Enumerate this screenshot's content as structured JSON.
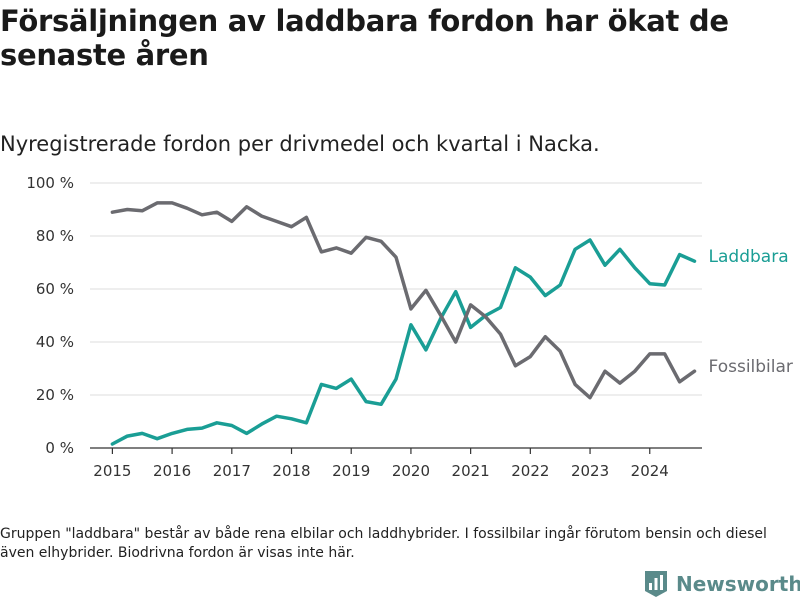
{
  "title": "Försäljningen av laddbara fordon har ökat de senaste åren",
  "subtitle": "Nyregistrerade fordon per drivmedel och kvartal i Nacka.",
  "note": "Gruppen \"laddbara\" består av både rena elbilar och laddhybrider. I fossilbilar ingår förutom bensin och diesel även elhybrider. Biodrivna fordon är visas inte här.",
  "brand": {
    "name": "Newsworthy",
    "icon": "bar-chart-logo-icon"
  },
  "colors": {
    "laddbara": "#1a9e95",
    "fossilbilar": "#6b6b70",
    "grid": "#dddddd",
    "axis": "#333333",
    "brand": "#5a8a8a"
  },
  "chart_data": {
    "type": "line",
    "title": "Försäljningen av laddbara fordon har ökat de senaste åren",
    "subtitle": "Nyregistrerade fordon per drivmedel och kvartal i Nacka.",
    "xlabel": "",
    "ylabel": "",
    "x_range": [
      2014.625,
      2024.875
    ],
    "ylim": [
      0,
      100
    ],
    "x_ticks": [
      {
        "value": 2015,
        "label": "2015"
      },
      {
        "value": 2016,
        "label": "2016"
      },
      {
        "value": 2017,
        "label": "2017"
      },
      {
        "value": 2018,
        "label": "2018"
      },
      {
        "value": 2019,
        "label": "2019"
      },
      {
        "value": 2020,
        "label": "2020"
      },
      {
        "value": 2021,
        "label": "2021"
      },
      {
        "value": 2022,
        "label": "2022"
      },
      {
        "value": 2023,
        "label": "2023"
      },
      {
        "value": 2024,
        "label": "2024"
      }
    ],
    "y_ticks": [
      {
        "value": 0,
        "label": "0 %"
      },
      {
        "value": 20,
        "label": "20 %"
      },
      {
        "value": 40,
        "label": "40 %"
      },
      {
        "value": 60,
        "label": "60 %"
      },
      {
        "value": 80,
        "label": "80 %"
      },
      {
        "value": 100,
        "label": "100 %"
      }
    ],
    "grid": true,
    "x": [
      2015.0,
      2015.25,
      2015.5,
      2015.75,
      2016.0,
      2016.25,
      2016.5,
      2016.75,
      2017.0,
      2017.25,
      2017.5,
      2017.75,
      2018.0,
      2018.25,
      2018.5,
      2018.75,
      2019.0,
      2019.25,
      2019.5,
      2019.75,
      2020.0,
      2020.25,
      2020.5,
      2020.75,
      2021.0,
      2021.25,
      2021.5,
      2021.75,
      2022.0,
      2022.25,
      2022.5,
      2022.75,
      2023.0,
      2023.25,
      2023.5,
      2023.75,
      2024.0,
      2024.25,
      2024.5,
      2024.75
    ],
    "series": [
      {
        "name": "Laddbara",
        "key": "laddbara",
        "values": [
          1.5,
          4.5,
          5.5,
          3.5,
          5.5,
          7.0,
          7.5,
          9.5,
          8.5,
          5.5,
          9.0,
          12.0,
          11.0,
          9.5,
          24.0,
          22.5,
          26.0,
          17.5,
          16.5,
          26.0,
          46.5,
          37.0,
          49.0,
          59.0,
          45.5,
          50.0,
          53.0,
          68.0,
          64.5,
          57.5,
          61.5,
          75.0,
          78.5,
          69.0,
          75.0,
          68.0,
          62.0,
          61.5,
          73.0,
          70.5
        ]
      },
      {
        "name": "Fossilbilar",
        "key": "fossilbilar",
        "values": [
          89.0,
          90.0,
          89.5,
          92.5,
          92.5,
          90.5,
          88.0,
          89.0,
          85.5,
          91.0,
          87.5,
          85.5,
          83.5,
          87.0,
          74.0,
          75.5,
          73.5,
          79.5,
          78.0,
          72.0,
          52.5,
          59.5,
          50.0,
          40.0,
          54.0,
          49.5,
          43.0,
          31.0,
          34.5,
          42.0,
          36.5,
          24.0,
          19.0,
          29.0,
          24.5,
          29.0,
          35.5,
          35.5,
          25.0,
          29.0
        ]
      }
    ]
  }
}
